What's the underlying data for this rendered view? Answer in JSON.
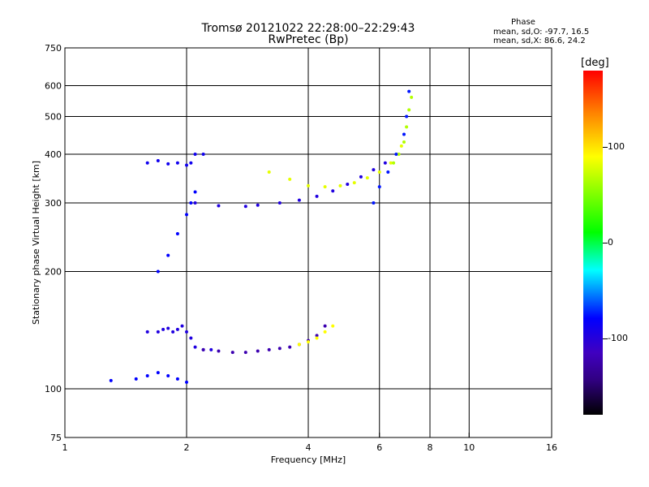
{
  "header": {
    "title_line1": "Tromsø 20121022 22:28:00–22:29:43",
    "title_line2": "RwPretec (Bp)"
  },
  "phase_stats": {
    "heading": "Phase",
    "line1": "mean, sd,O: -97.7, 16.5",
    "line2": "mean, sd,X:  86.6, 24.2"
  },
  "colorbar": {
    "unit_label": "[deg]",
    "ticks": [
      "100",
      "0",
      "-100"
    ],
    "tick_values": [
      100,
      0,
      -100
    ],
    "range": [
      -180,
      180
    ]
  },
  "chart_data": {
    "type": "scatter",
    "title": "Tromsø 20121022 22:28:00–22:29:43",
    "subtitle": "RwPretec (Bp)",
    "xlabel": "Frequency [MHz]",
    "ylabel": "Stationary phase Virtual Height [km]",
    "xscale": "log",
    "yscale": "log",
    "xlim": [
      1,
      16
    ],
    "ylim": [
      75,
      750
    ],
    "xticks": [
      1,
      2,
      4,
      6,
      8,
      10,
      16
    ],
    "xtick_labels": [
      "1",
      "2",
      "4",
      "6",
      "8",
      "10",
      "16"
    ],
    "yticks": [
      75,
      100,
      200,
      300,
      400,
      500,
      600,
      750
    ],
    "ytick_labels": [
      "75",
      "100",
      "200",
      "300",
      "400",
      "500",
      "600",
      "750"
    ],
    "grid_x": [
      2,
      4,
      6,
      8,
      10
    ],
    "grid_y": [
      100,
      200,
      300,
      400,
      500,
      600
    ],
    "color_by": "phase [deg]",
    "series": [
      {
        "x": [
          1.3,
          1.5,
          1.6,
          1.7,
          1.8,
          1.9,
          2.0
        ],
        "y": [
          105,
          106,
          108,
          110,
          108,
          106,
          104
        ],
        "phase": -100
      },
      {
        "x": [
          1.6,
          1.7,
          1.75,
          1.8,
          1.85,
          1.9,
          1.95,
          2.0,
          2.05,
          2.1,
          2.2,
          2.3
        ],
        "y": [
          140,
          140,
          142,
          143,
          140,
          142,
          145,
          140,
          135,
          128,
          126,
          126
        ],
        "phase": -110
      },
      {
        "x": [
          2.2,
          2.4,
          2.6,
          2.8,
          3.0,
          3.2,
          3.4,
          3.6,
          3.8,
          4.0,
          4.2,
          4.4
        ],
        "y": [
          126,
          125,
          124,
          124,
          125,
          126,
          127,
          128,
          130,
          133,
          137,
          145
        ],
        "phase": -125
      },
      {
        "x": [
          3.8,
          4.0,
          4.2,
          4.4,
          4.6
        ],
        "y": [
          130,
          132,
          135,
          140,
          145
        ],
        "phase": 90
      },
      {
        "x": [
          1.6,
          1.7,
          1.8,
          1.9,
          2.0,
          2.05,
          2.1,
          2.2
        ],
        "y": [
          380,
          385,
          378,
          380,
          375,
          380,
          400,
          400
        ],
        "phase": -105
      },
      {
        "x": [
          1.7,
          1.8,
          1.9,
          2.0,
          2.05,
          2.1
        ],
        "y": [
          200,
          220,
          250,
          280,
          300,
          320
        ],
        "phase": -100
      },
      {
        "x": [
          2.1,
          2.4,
          2.8,
          3.0,
          3.4,
          3.8,
          4.2,
          4.6,
          5.0,
          5.4,
          5.8,
          6.2
        ],
        "y": [
          300,
          295,
          294,
          296,
          300,
          305,
          312,
          322,
          335,
          350,
          365,
          380
        ],
        "phase": -110
      },
      {
        "x": [
          3.2,
          3.6,
          4.0,
          4.4,
          4.8,
          5.2,
          5.6,
          6.0,
          6.4,
          6.8
        ],
        "y": [
          360,
          345,
          332,
          330,
          332,
          338,
          348,
          360,
          380,
          420
        ],
        "phase": 80
      },
      {
        "x": [
          6.5,
          6.7,
          6.9,
          7.0,
          7.1,
          7.2
        ],
        "y": [
          380,
          400,
          430,
          470,
          520,
          560
        ],
        "phase": 60
      },
      {
        "x": [
          5.8,
          6.0,
          6.3,
          6.6,
          6.9,
          7.0,
          7.1
        ],
        "y": [
          300,
          330,
          360,
          400,
          450,
          500,
          580
        ],
        "phase": -95
      }
    ]
  }
}
